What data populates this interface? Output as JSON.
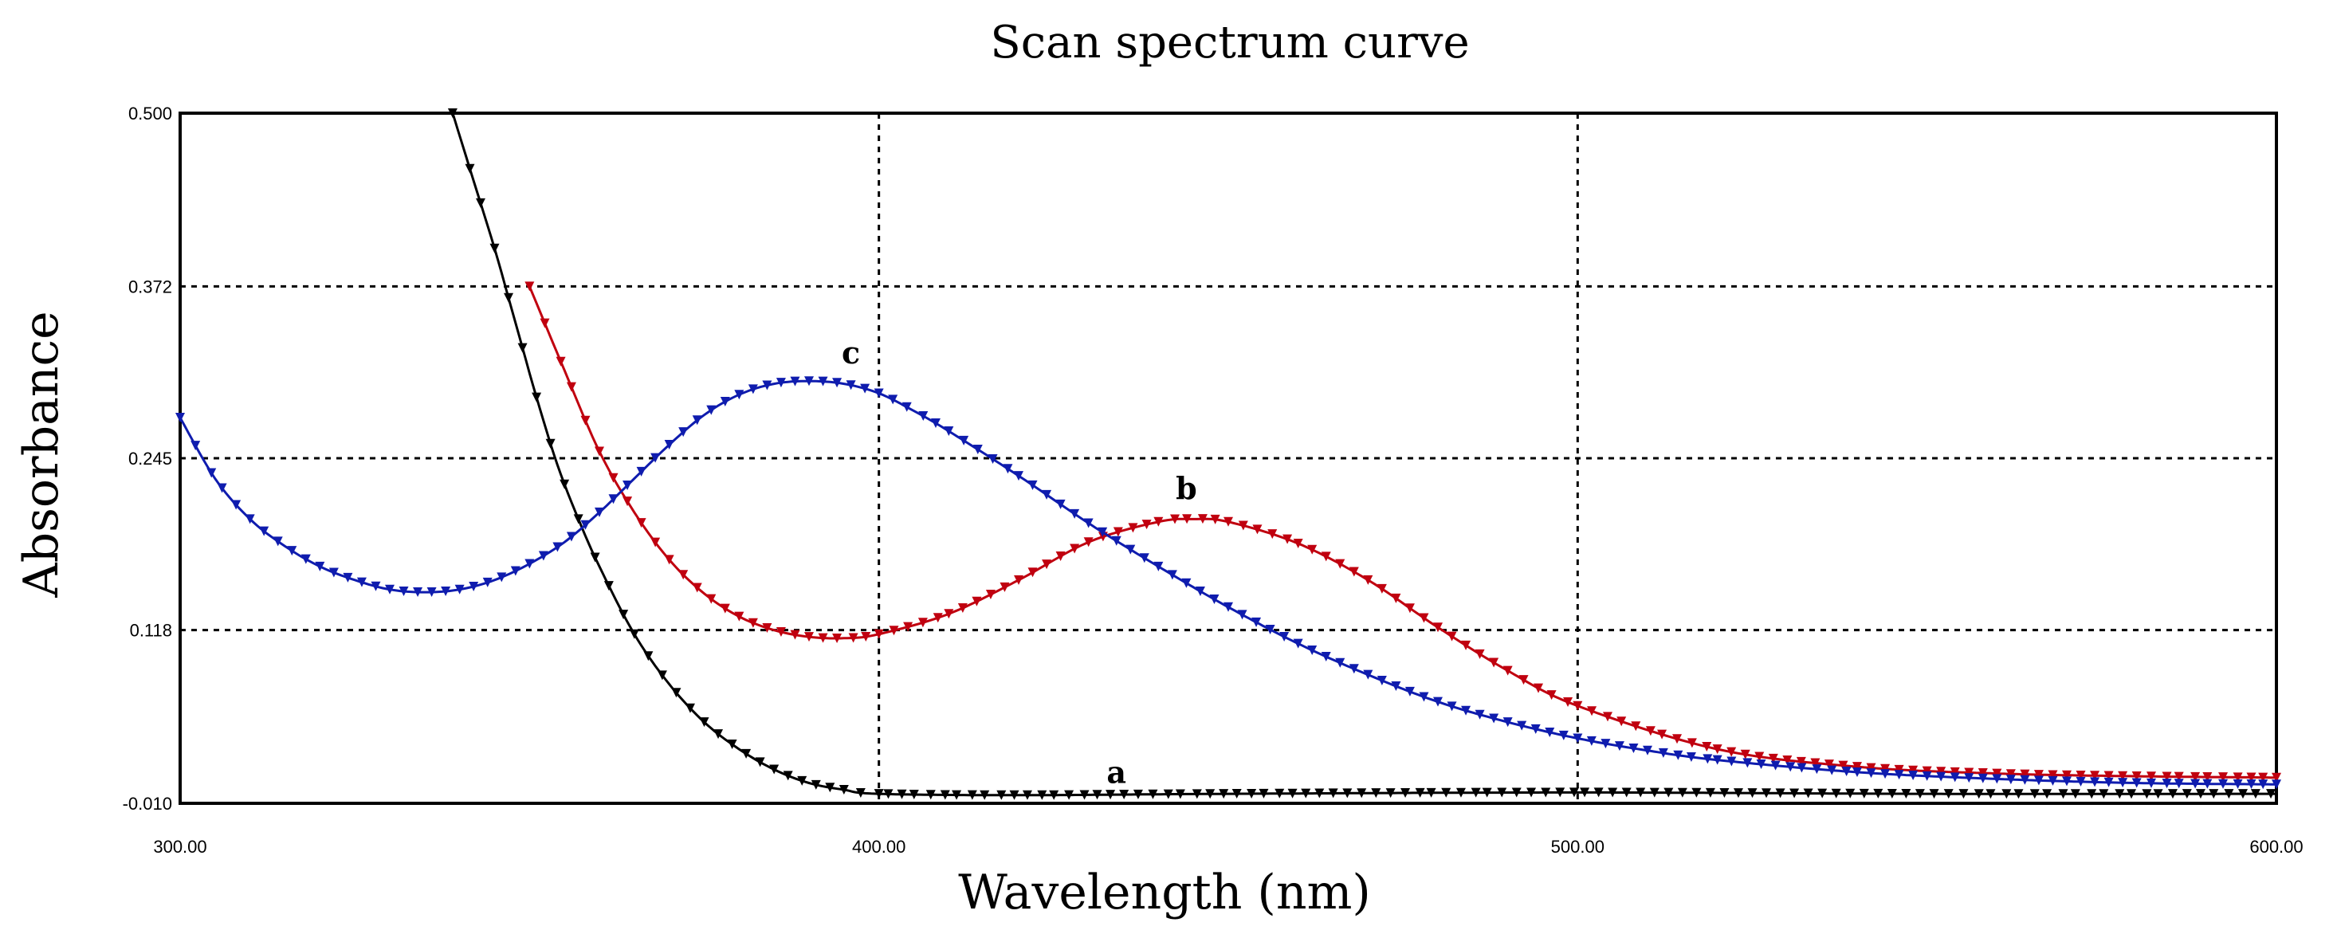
{
  "chart_data": {
    "type": "line",
    "title": "Scan spectrum curve",
    "xlabel": "Wavelength (nm)",
    "ylabel": "Absorbance",
    "xlim": [
      300,
      600
    ],
    "ylim": [
      -0.01,
      0.5
    ],
    "xticks": [
      300,
      400,
      500,
      600
    ],
    "xtick_labels": [
      "300.00",
      "400.00",
      "500.00",
      "600.00"
    ],
    "yticks": [
      -0.01,
      0.118,
      0.245,
      0.372,
      0.5
    ],
    "ytick_labels": [
      "-0.010",
      "0.118",
      "0.245",
      "0.372",
      "0.500"
    ],
    "grid": true,
    "series": [
      {
        "name": "a",
        "color": "#000000",
        "x": [
          339,
          342,
          345,
          348,
          351,
          354,
          357,
          360,
          365,
          370,
          375,
          380,
          385,
          390,
          395,
          400,
          420,
          450,
          500,
          550,
          600
        ],
        "values": [
          0.5,
          0.45,
          0.4,
          0.345,
          0.29,
          0.24,
          0.2,
          0.165,
          0.115,
          0.078,
          0.05,
          0.03,
          0.015,
          0.005,
          0.0,
          -0.003,
          -0.004,
          -0.003,
          -0.002,
          -0.003,
          -0.003
        ]
      },
      {
        "name": "b",
        "color": "#c0000f",
        "x": [
          350,
          355,
          360,
          365,
          370,
          375,
          380,
          385,
          390,
          395,
          400,
          410,
          420,
          430,
          440,
          445,
          450,
          460,
          470,
          480,
          490,
          500,
          520,
          540,
          560,
          580,
          600
        ],
        "values": [
          0.372,
          0.31,
          0.25,
          0.205,
          0.17,
          0.145,
          0.128,
          0.118,
          0.113,
          0.112,
          0.115,
          0.13,
          0.155,
          0.183,
          0.198,
          0.2,
          0.198,
          0.182,
          0.155,
          0.12,
          0.088,
          0.062,
          0.03,
          0.017,
          0.012,
          0.01,
          0.009
        ]
      },
      {
        "name": "c",
        "color": "#0f1cae",
        "x": [
          300,
          305,
          310,
          315,
          320,
          325,
          330,
          335,
          340,
          345,
          350,
          355,
          360,
          365,
          370,
          375,
          380,
          385,
          390,
          395,
          400,
          405,
          410,
          420,
          430,
          440,
          450,
          460,
          470,
          480,
          490,
          500,
          510,
          520,
          540,
          560,
          580,
          600
        ],
        "values": [
          0.275,
          0.23,
          0.2,
          0.18,
          0.165,
          0.155,
          0.148,
          0.146,
          0.148,
          0.155,
          0.167,
          0.183,
          0.205,
          0.23,
          0.255,
          0.277,
          0.292,
          0.3,
          0.302,
          0.3,
          0.293,
          0.28,
          0.265,
          0.232,
          0.197,
          0.165,
          0.135,
          0.108,
          0.085,
          0.065,
          0.05,
          0.038,
          0.029,
          0.022,
          0.013,
          0.008,
          0.005,
          0.004
        ]
      }
    ],
    "annotations": [
      {
        "text": "c",
        "x": 396,
        "y": 0.315
      },
      {
        "text": "b",
        "x": 444,
        "y": 0.215
      },
      {
        "text": "a",
        "x": 434,
        "y": 0.005
      }
    ]
  }
}
